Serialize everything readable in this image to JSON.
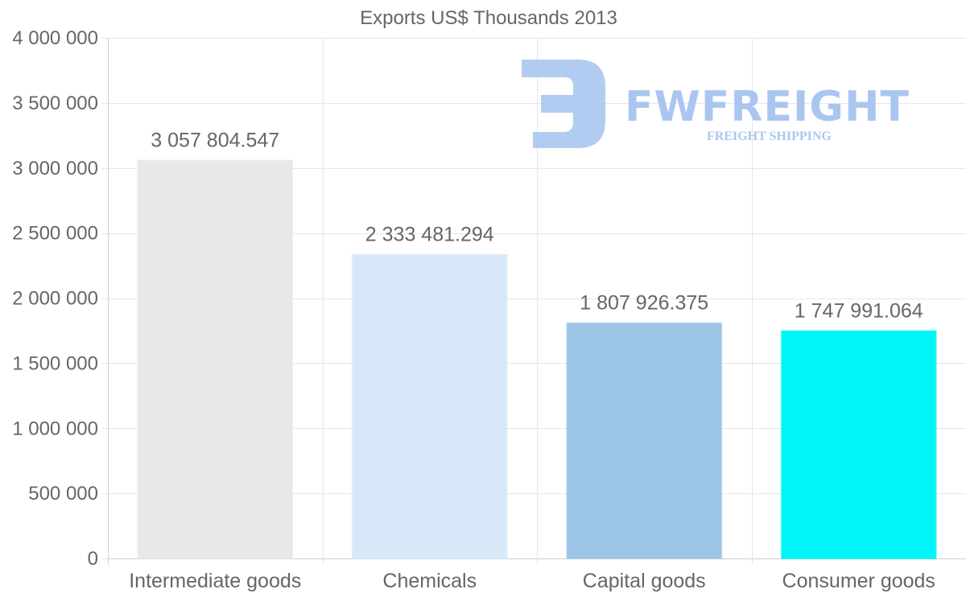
{
  "chart_data": {
    "type": "bar",
    "title": "Exports US$ Thousands 2013",
    "categories": [
      "Intermediate goods",
      "Chemicals",
      "Capital goods",
      "Consumer goods"
    ],
    "values": [
      3057804.547,
      2333481.294,
      1807926.375,
      1747991.064
    ],
    "value_labels": [
      "3 057 804.547",
      "2 333 481.294",
      "1 807 926.375",
      "1 747 991.064"
    ],
    "colors": [
      "#e8e8e8",
      "#d8e8f8",
      "#9cc4e6",
      "#00f6f6"
    ],
    "ylim": [
      0,
      4000000
    ],
    "yticks": [
      0,
      500000,
      1000000,
      1500000,
      2000000,
      2500000,
      3000000,
      3500000,
      4000000
    ],
    "ytick_labels": [
      "0",
      "500 000",
      "1 000 000",
      "1 500 000",
      "2 000 000",
      "2 500 000",
      "3 000 000",
      "3 500 000",
      "4 000 000"
    ],
    "xlabel": "",
    "ylabel": "",
    "grid": true
  },
  "watermark": {
    "brand": "FWFREIGHT",
    "tagline": "FREIGHT SHIPPING"
  }
}
